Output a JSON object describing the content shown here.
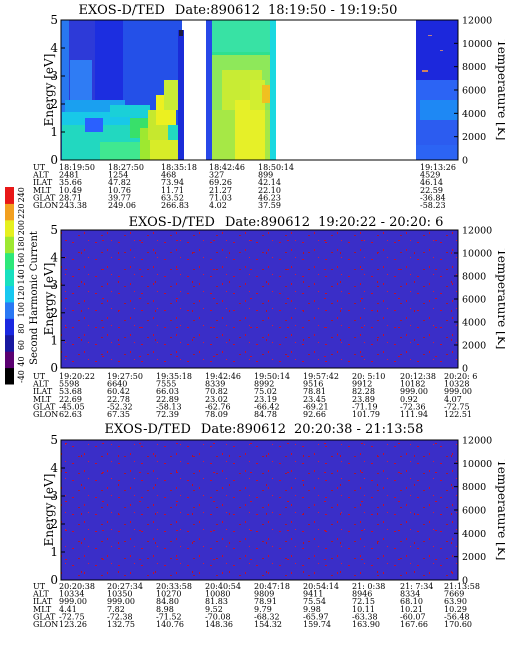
{
  "chart_data": [
    {
      "type": "heatmap",
      "title": "EXOS-D/TED",
      "date_label": "Date:890612",
      "time_range": "18:19:50 - 19:19:50",
      "ylabel": "Energy [eV]",
      "y2label": "Temperature [K]",
      "ylim": [
        0,
        5
      ],
      "y2lim": [
        0,
        12000
      ],
      "yticks": [
        "0",
        "1",
        "2",
        "3",
        "4",
        "5"
      ],
      "y2ticks": [
        "0",
        "2000",
        "4000",
        "6000",
        "8000",
        "10000",
        "12000"
      ],
      "table_rows": [
        "UT",
        "ALT",
        "ILAT",
        "MLT",
        "GLAT",
        "GLON"
      ],
      "columns": [
        {
          "UT": "18:19:50",
          "ALT": "2481",
          "ILAT": "35.66",
          "MLT": "10.49",
          "GLAT": "28.71",
          "GLON": "243.38"
        },
        {
          "UT": "18:27:50",
          "ALT": "1254",
          "ILAT": "47.82",
          "MLT": "10.76",
          "GLAT": "39.77",
          "GLON": "249.06"
        },
        {
          "UT": "18:35:18",
          "ALT": "468",
          "ILAT": "73.94",
          "MLT": "11.71",
          "GLAT": "63.52",
          "GLON": "266.83"
        },
        {
          "UT": "18:42:46",
          "ALT": "327",
          "ILAT": "69.26",
          "MLT": "21.27",
          "GLAT": "71.03",
          "GLON": "4.02"
        },
        {
          "UT": "18:50:14",
          "ALT": "899",
          "ILAT": "42.14",
          "MLT": "22.10",
          "GLAT": "46.23",
          "GLON": "37.59"
        },
        {
          "UT": "19:13:26",
          "ALT": "4529",
          "ILAT": "46.14",
          "MLT": "22.59",
          "GLAT": "-36.84",
          "GLON": "-58.23"
        }
      ],
      "colorbar": {
        "label": "Second Harmonic Current",
        "ticks": [
          "-40",
          "40",
          "60",
          "80",
          "100",
          "120",
          "140",
          "160",
          "180",
          "200",
          "220",
          "240"
        ]
      }
    },
    {
      "type": "heatmap",
      "title": "EXOS-D/TED",
      "date_label": "Date:890612",
      "time_range": "19:20:22 - 20:20: 6",
      "ylabel": "Energy [eV]",
      "y2label": "Temperature [K]",
      "ylim": [
        0,
        5
      ],
      "y2lim": [
        0,
        12000
      ],
      "yticks": [
        "0",
        "1",
        "2",
        "3",
        "4",
        "5"
      ],
      "y2ticks": [
        "0",
        "2000",
        "4000",
        "6000",
        "8000",
        "10000",
        "12000"
      ],
      "table_rows": [
        "UT",
        "ALT",
        "ILAT",
        "MLT",
        "GLAT",
        "GLON"
      ],
      "columns": [
        {
          "UT": "19:20:22",
          "ALT": "5598",
          "ILAT": "53.68",
          "MLT": "22.69",
          "GLAT": "-45.05",
          "GLON": "62.63"
        },
        {
          "UT": "19:27:50",
          "ALT": "6640",
          "ILAT": "60.42",
          "MLT": "22.78",
          "GLAT": "-52.32",
          "GLON": "67.35"
        },
        {
          "UT": "19:35:18",
          "ALT": "7555",
          "ILAT": "66.03",
          "MLT": "22.89",
          "GLAT": "-58.13",
          "GLON": "72.39"
        },
        {
          "UT": "19:42:46",
          "ALT": "8339",
          "ILAT": "70.82",
          "MLT": "23.02",
          "GLAT": "-62.76",
          "GLON": "78.09"
        },
        {
          "UT": "19:50:14",
          "ALT": "8992",
          "ILAT": "75.02",
          "MLT": "23.19",
          "GLAT": "-66.42",
          "GLON": "84.78"
        },
        {
          "UT": "19:57:42",
          "ALT": "9516",
          "ILAT": "78.81",
          "MLT": "23.45",
          "GLAT": "-69.21",
          "GLON": "92.66"
        },
        {
          "UT": "20: 5:10",
          "ALT": "9912",
          "ILAT": "82.28",
          "MLT": "23.89",
          "GLAT": "-71.19",
          "GLON": "101.79"
        },
        {
          "UT": "20:12:38",
          "ALT": "10182",
          "ILAT": "999.00",
          "MLT": "0.92",
          "GLAT": "-72.36",
          "GLON": "111.94"
        },
        {
          "UT": "20:20: 6",
          "ALT": "10328",
          "ILAT": "999.00",
          "MLT": "4.07",
          "GLAT": "-72.75",
          "GLON": "122.51"
        }
      ]
    },
    {
      "type": "heatmap",
      "title": "EXOS-D/TED",
      "date_label": "Date:890612",
      "time_range": "20:20:38 - 21:13:58",
      "ylabel": "Energy [eV]",
      "y2label": "Temperature [K]",
      "ylim": [
        0,
        5
      ],
      "y2lim": [
        0,
        12000
      ],
      "yticks": [
        "0",
        "1",
        "2",
        "3",
        "4",
        "5"
      ],
      "y2ticks": [
        "0",
        "2000",
        "4000",
        "6000",
        "8000",
        "10000",
        "12000"
      ],
      "table_rows": [
        "UT",
        "ALT",
        "ILAT",
        "MLT",
        "GLAT",
        "GLON"
      ],
      "columns": [
        {
          "UT": "20:20:38",
          "ALT": "10334",
          "ILAT": "999.00",
          "MLT": "4.41",
          "GLAT": "-72.75",
          "GLON": "123.26"
        },
        {
          "UT": "20:27:34",
          "ALT": "10350",
          "ILAT": "999.00",
          "MLT": "7.82",
          "GLAT": "-72.38",
          "GLON": "132.75"
        },
        {
          "UT": "20:33:58",
          "ALT": "10270",
          "ILAT": "84.80",
          "MLT": "8.98",
          "GLAT": "-71.52",
          "GLON": "140.76"
        },
        {
          "UT": "20:40:54",
          "ALT": "10080",
          "ILAT": "81.83",
          "MLT": "9.52",
          "GLAT": "-70.08",
          "GLON": "148.36"
        },
        {
          "UT": "20:47:18",
          "ALT": "9809",
          "ILAT": "78.91",
          "MLT": "9.79",
          "GLAT": "-68.32",
          "GLON": "154.32"
        },
        {
          "UT": "20:54:14",
          "ALT": "9411",
          "ILAT": "75.54",
          "MLT": "9.98",
          "GLAT": "-65.97",
          "GLON": "159.74"
        },
        {
          "UT": "21: 0:38",
          "ALT": "8946",
          "ILAT": "72.15",
          "MLT": "10.11",
          "GLAT": "-63.38",
          "GLON": "163.90"
        },
        {
          "UT": "21: 7:34",
          "ALT": "8334",
          "ILAT": "68.10",
          "MLT": "10.21",
          "GLAT": "-60.07",
          "GLON": "167.66"
        },
        {
          "UT": "21:13:58",
          "ALT": "7669",
          "ILAT": "63.90",
          "MLT": "10.29",
          "GLAT": "-56.48",
          "GLON": "170.60"
        }
      ]
    }
  ],
  "colors": {
    "background": "#ffffff",
    "quiet_field": "#3a2ec8",
    "noise_speck": "#c01030",
    "deep_blue": "#1a1ae0",
    "blue": "#2d6cf0",
    "cyan": "#19e0e8",
    "teal": "#18c8a0",
    "green": "#2ee87a",
    "yellow_green": "#c6e82e",
    "yellow": "#f2f21a"
  }
}
